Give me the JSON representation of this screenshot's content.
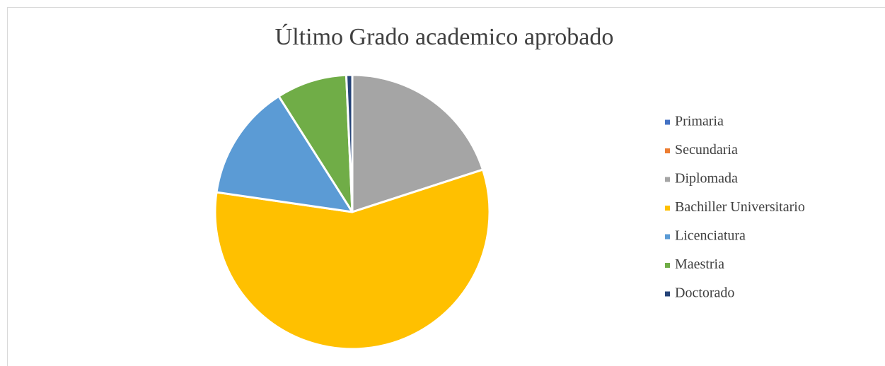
{
  "chart_data": {
    "type": "pie",
    "title": "Último Grado academico aprobado",
    "categories": [
      "Primaria",
      "Secundaria",
      "Diplomada",
      "Bachiller Universitario",
      "Licenciatura",
      "Maestria",
      "Doctorado"
    ],
    "values": [
      0,
      0,
      20,
      57.3,
      13.7,
      8.3,
      0.7
    ],
    "colors": [
      "#4472c4",
      "#ed7d31",
      "#a5a5a5",
      "#ffc000",
      "#5b9bd5",
      "#70ad47",
      "#264478"
    ],
    "legend": "right"
  }
}
